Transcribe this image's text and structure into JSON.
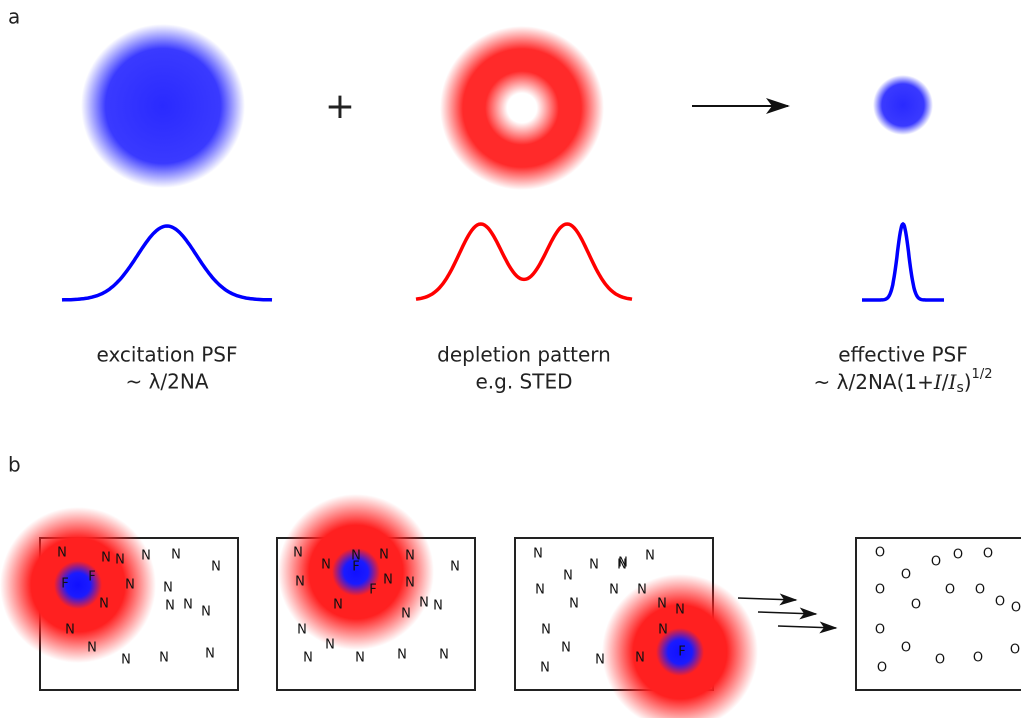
{
  "panel_a": {
    "label": "a",
    "plus": "+",
    "excitation": {
      "title": "excitation PSF",
      "formula": "~ λ/2NA"
    },
    "depletion": {
      "title": "depletion pattern",
      "formula": "e.g. STED"
    },
    "effective": {
      "title": "effective PSF",
      "formula": {
        "prefix": "~ λ/2NA(1+",
        "i1": "I",
        "slash": "/",
        "i2": "I",
        "sub": "s",
        "close": ")",
        "sup": "1/2"
      }
    }
  },
  "panel_b": {
    "label": "b",
    "frames": [
      {
        "molecules": [
          "N",
          "N",
          "N",
          "N",
          "N",
          "F",
          "F",
          "N",
          "N",
          "N",
          "N",
          "N",
          "N",
          "N",
          "N",
          "N",
          "N",
          "N",
          "N"
        ]
      },
      {
        "molecules": [
          "N",
          "N",
          "N",
          "N",
          "N",
          "F",
          "N",
          "N",
          "F",
          "N",
          "N",
          "N",
          "N",
          "N",
          "N",
          "N",
          "N",
          "N",
          "N",
          "N",
          "N"
        ]
      },
      {
        "molecules": [
          "N",
          "N",
          "N",
          "N",
          "N",
          "N",
          "N",
          "N",
          "N",
          "N",
          "N",
          "N",
          "N",
          "N",
          "N",
          "N",
          "N",
          "N",
          "F"
        ]
      },
      {
        "molecules": [
          "O",
          "O",
          "O",
          "O",
          "O",
          "O",
          "O",
          "O",
          "O",
          "O",
          "O",
          "O",
          "O",
          "O",
          "O",
          "O",
          "O"
        ]
      }
    ]
  }
}
